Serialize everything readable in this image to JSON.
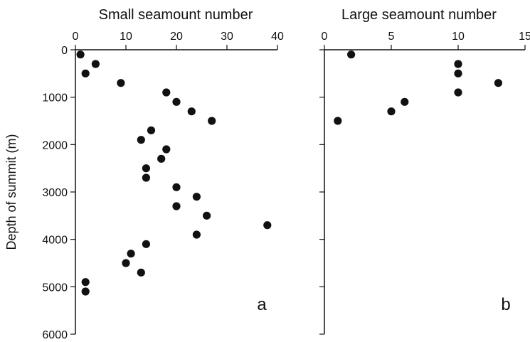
{
  "chart_data": [
    {
      "type": "scatter",
      "panel_label": "a",
      "title": "Small seamount number",
      "xlabel": "",
      "ylabel": "Depth of summit (m)",
      "xlim": [
        0,
        40
      ],
      "ylim": [
        0,
        6000
      ],
      "y_inverted": true,
      "x_axis_position": "top",
      "x_ticks": [
        0,
        10,
        20,
        30,
        40
      ],
      "y_ticks": [
        0,
        1000,
        2000,
        3000,
        4000,
        5000,
        6000
      ],
      "grid": false,
      "points": [
        {
          "x": 1,
          "y": 100
        },
        {
          "x": 4,
          "y": 300
        },
        {
          "x": 2,
          "y": 500
        },
        {
          "x": 9,
          "y": 700
        },
        {
          "x": 18,
          "y": 900
        },
        {
          "x": 20,
          "y": 1100
        },
        {
          "x": 23,
          "y": 1300
        },
        {
          "x": 27,
          "y": 1500
        },
        {
          "x": 15,
          "y": 1700
        },
        {
          "x": 13,
          "y": 1900
        },
        {
          "x": 18,
          "y": 2100
        },
        {
          "x": 17,
          "y": 2300
        },
        {
          "x": 14,
          "y": 2500
        },
        {
          "x": 14,
          "y": 2700
        },
        {
          "x": 20,
          "y": 2900
        },
        {
          "x": 24,
          "y": 3100
        },
        {
          "x": 20,
          "y": 3300
        },
        {
          "x": 26,
          "y": 3500
        },
        {
          "x": 38,
          "y": 3700
        },
        {
          "x": 24,
          "y": 3900
        },
        {
          "x": 14,
          "y": 4100
        },
        {
          "x": 11,
          "y": 4300
        },
        {
          "x": 10,
          "y": 4500
        },
        {
          "x": 13,
          "y": 4700
        },
        {
          "x": 2,
          "y": 4900
        },
        {
          "x": 2,
          "y": 5100
        }
      ]
    },
    {
      "type": "scatter",
      "panel_label": "b",
      "title": "Large seamount number",
      "xlabel": "",
      "ylabel": "",
      "xlim": [
        0,
        15
      ],
      "ylim": [
        0,
        6000
      ],
      "y_inverted": true,
      "x_axis_position": "top",
      "x_ticks": [
        0,
        5,
        10,
        15
      ],
      "y_ticks": [
        0,
        1000,
        2000,
        3000,
        4000,
        5000,
        6000
      ],
      "y_tick_labels_shown": false,
      "grid": false,
      "points": [
        {
          "x": 2,
          "y": 100
        },
        {
          "x": 10,
          "y": 300
        },
        {
          "x": 10,
          "y": 500
        },
        {
          "x": 13,
          "y": 700
        },
        {
          "x": 10,
          "y": 900
        },
        {
          "x": 6,
          "y": 1100
        },
        {
          "x": 5,
          "y": 1300
        },
        {
          "x": 1,
          "y": 1500
        }
      ]
    }
  ]
}
